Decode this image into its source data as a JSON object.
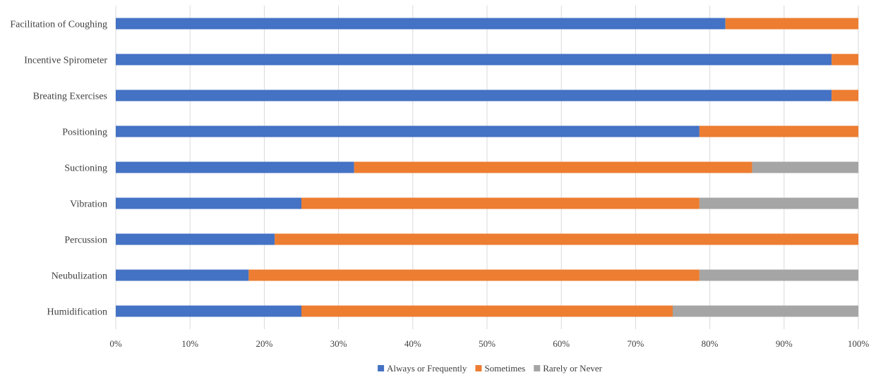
{
  "chart_data": {
    "type": "bar",
    "orientation": "horizontal",
    "stacked": "percent",
    "title": "",
    "xlabel": "",
    "ylabel": "",
    "xlim": [
      0,
      100
    ],
    "x_ticks": [
      "0%",
      "10%",
      "20%",
      "30%",
      "40%",
      "50%",
      "60%",
      "70%",
      "80%",
      "90%",
      "100%"
    ],
    "grid": "vertical",
    "legend_position": "bottom",
    "categories": [
      "Facilitation of Coughing",
      "Incentive Spirometer",
      "Breating Exercises",
      "Positioning",
      "Suctioning",
      "Vibration",
      "Percussion",
      "Neubulization",
      "Humidification"
    ],
    "series": [
      {
        "name": "Always or Frequently",
        "color": "#4472C4",
        "values": [
          82.1,
          96.4,
          96.4,
          78.6,
          32.1,
          25.0,
          21.4,
          17.9,
          25.0
        ]
      },
      {
        "name": "Sometimes",
        "color": "#ED7D31",
        "values": [
          17.9,
          3.6,
          3.6,
          21.4,
          53.6,
          53.6,
          78.6,
          60.7,
          50.0
        ]
      },
      {
        "name": "Rarely or Never",
        "color": "#A5A5A5",
        "values": [
          0,
          0,
          0,
          0,
          14.3,
          21.4,
          0,
          21.4,
          25.0
        ]
      }
    ]
  }
}
